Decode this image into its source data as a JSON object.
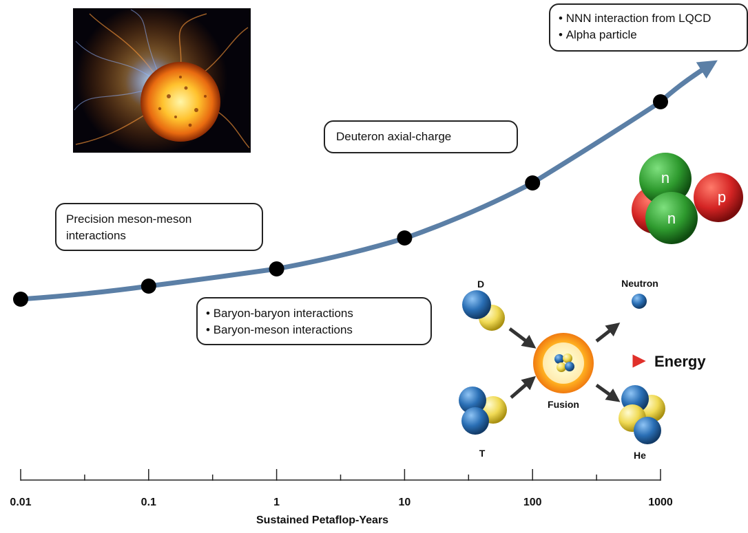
{
  "chart_data": {
    "type": "line",
    "x": [
      0.01,
      0.1,
      1,
      10,
      100,
      1000
    ],
    "tick_labels": [
      "0.01",
      "0.1",
      "1",
      "10",
      "100",
      "1000"
    ],
    "xlabel": "Sustained Petaflop-Years",
    "x_scale": "log",
    "xlim": [
      0.01,
      1000
    ],
    "grid": false,
    "line_color": "#5b7fa6",
    "marker_color": "#000000"
  },
  "callouts": {
    "meson": "Precision meson-meson interactions",
    "deuteron": "Deuteron axial-charge",
    "baryon": [
      "Baryon-baryon interactions",
      "Baryon-meson interactions"
    ],
    "nnn": [
      "NNN interaction from LQCD",
      "Alpha particle"
    ]
  },
  "nucleus": {
    "n1": "n",
    "n2": "n",
    "p": "p"
  },
  "fusion": {
    "d": "D",
    "t": "T",
    "center": "Fusion",
    "neutron": "Neutron",
    "he": "He",
    "energy": "Energy"
  },
  "colors": {
    "proton_red": "#d42424",
    "neutron_green": "#2e9a2e",
    "nucleon_blue": "#2a6fb5",
    "nucleon_yellow": "#f0da55",
    "energy_arrow": "#e0302a"
  },
  "images": {
    "sun": "star-flare-photo"
  }
}
